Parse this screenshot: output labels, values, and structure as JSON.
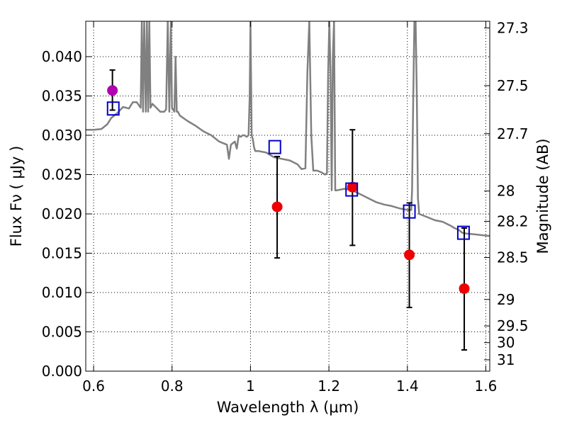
{
  "chart_data": {
    "type": "scatter",
    "xlabel": "Wavelength  λ (μm)",
    "ylabel": "Flux  Fν  ( μJy )",
    "y2label": "Magnitude (AB)",
    "xlim": [
      0.58,
      1.61
    ],
    "ylim": [
      0.0,
      0.0445
    ],
    "grid": true,
    "x_ticks": [
      {
        "value": 0.6,
        "label": "0.6"
      },
      {
        "value": 0.8,
        "label": "0.8"
      },
      {
        "value": 1.0,
        "label": "1"
      },
      {
        "value": 1.2,
        "label": "1.2"
      },
      {
        "value": 1.4,
        "label": "1.4"
      },
      {
        "value": 1.6,
        "label": "1.6"
      }
    ],
    "y_ticks": [
      {
        "value": 0.0,
        "label": "0.000"
      },
      {
        "value": 0.005,
        "label": "0.005"
      },
      {
        "value": 0.01,
        "label": "0.010"
      },
      {
        "value": 0.015,
        "label": "0.015"
      },
      {
        "value": 0.02,
        "label": "0.020"
      },
      {
        "value": 0.025,
        "label": "0.025"
      },
      {
        "value": 0.03,
        "label": "0.030"
      },
      {
        "value": 0.035,
        "label": "0.035"
      },
      {
        "value": 0.04,
        "label": "0.040"
      }
    ],
    "y2_ticks": [
      {
        "value": 27.3,
        "label": "27.3"
      },
      {
        "value": 27.5,
        "label": "27.5"
      },
      {
        "value": 27.7,
        "label": "27.7"
      },
      {
        "value": 28.0,
        "label": "28"
      },
      {
        "value": 28.2,
        "label": "28.2"
      },
      {
        "value": 28.5,
        "label": "28.5"
      },
      {
        "value": 29.0,
        "label": "29"
      },
      {
        "value": 29.5,
        "label": "29.5"
      },
      {
        "value": 30.0,
        "label": "30"
      },
      {
        "value": 31.0,
        "label": "31"
      }
    ],
    "model_spectrum": {
      "color": "#808080",
      "x": [
        0.58,
        0.6,
        0.62,
        0.635,
        0.645,
        0.66,
        0.675,
        0.69,
        0.7,
        0.71,
        0.72,
        0.723,
        0.726,
        0.729,
        0.733,
        0.736,
        0.739,
        0.742,
        0.745,
        0.75,
        0.76,
        0.77,
        0.78,
        0.785,
        0.789,
        0.793,
        0.797,
        0.8,
        0.806,
        0.809,
        0.812,
        0.815,
        0.82,
        0.84,
        0.86,
        0.88,
        0.9,
        0.92,
        0.94,
        0.945,
        0.95,
        0.955,
        0.96,
        0.965,
        0.97,
        0.975,
        0.98,
        0.985,
        0.99,
        0.995,
        0.998,
        1.0,
        1.003,
        1.006,
        1.009,
        1.012,
        1.02,
        1.04,
        1.06,
        1.08,
        1.1,
        1.12,
        1.13,
        1.14,
        1.145,
        1.15,
        1.155,
        1.16,
        1.17,
        1.18,
        1.19,
        1.195,
        1.198,
        1.201,
        1.204,
        1.207,
        1.21,
        1.213,
        1.216,
        1.22,
        1.24,
        1.26,
        1.28,
        1.3,
        1.32,
        1.34,
        1.36,
        1.38,
        1.4,
        1.41,
        1.412,
        1.415,
        1.418,
        1.421,
        1.424,
        1.427,
        1.43,
        1.45,
        1.47,
        1.49,
        1.51,
        1.52,
        1.53,
        1.54,
        1.55,
        1.57,
        1.59,
        1.61
      ],
      "y": [
        0.0307,
        0.0307,
        0.0308,
        0.0314,
        0.0322,
        0.0328,
        0.0336,
        0.0334,
        0.0342,
        0.0342,
        0.0335,
        0.0445,
        0.033,
        0.0445,
        0.033,
        0.0445,
        0.033,
        0.0445,
        0.0335,
        0.034,
        0.0335,
        0.033,
        0.033,
        0.0333,
        0.0445,
        0.033,
        0.0445,
        0.0335,
        0.033,
        0.04,
        0.033,
        0.033,
        0.0325,
        0.0318,
        0.0312,
        0.0305,
        0.03,
        0.0292,
        0.0288,
        0.027,
        0.0288,
        0.029,
        0.0292,
        0.0283,
        0.03,
        0.0298,
        0.03,
        0.03,
        0.0298,
        0.03,
        0.035,
        0.0445,
        0.03,
        0.0295,
        0.0285,
        0.028,
        0.028,
        0.0278,
        0.0272,
        0.027,
        0.0268,
        0.0263,
        0.0257,
        0.0258,
        0.038,
        0.0445,
        0.03,
        0.0255,
        0.0255,
        0.0253,
        0.025,
        0.0252,
        0.038,
        0.0445,
        0.038,
        0.023,
        0.04,
        0.0445,
        0.023,
        0.023,
        0.0232,
        0.023,
        0.0225,
        0.022,
        0.0215,
        0.0212,
        0.021,
        0.0207,
        0.0205,
        0.0205,
        0.023,
        0.035,
        0.0445,
        0.0445,
        0.035,
        0.022,
        0.02,
        0.0196,
        0.0192,
        0.019,
        0.0185,
        0.0182,
        0.018,
        0.0176,
        0.0175,
        0.0174,
        0.0173,
        0.0172
      ]
    },
    "observed_points": [
      {
        "x": 0.648,
        "y": 0.0357,
        "err_low": 0.0332,
        "err_high": 0.0383,
        "color": "#b000b0"
      },
      {
        "x": 1.068,
        "y": 0.0209,
        "err_low": 0.0144,
        "err_high": 0.0273,
        "color": "#ee0000"
      },
      {
        "x": 1.26,
        "y": 0.0234,
        "err_low": 0.016,
        "err_high": 0.0307,
        "color": "#ee0000"
      },
      {
        "x": 1.405,
        "y": 0.0148,
        "err_low": 0.0081,
        "err_high": 0.0214,
        "color": "#ee0000"
      },
      {
        "x": 1.545,
        "y": 0.0105,
        "err_low": 0.0027,
        "err_high": 0.0182,
        "color": "#ee0000"
      }
    ],
    "model_photometry": {
      "color": "#0000cc",
      "points": [
        {
          "x": 0.65,
          "y": 0.0334
        },
        {
          "x": 1.062,
          "y": 0.0285
        },
        {
          "x": 1.258,
          "y": 0.0231
        },
        {
          "x": 1.405,
          "y": 0.0203
        },
        {
          "x": 1.543,
          "y": 0.0176
        }
      ]
    }
  }
}
